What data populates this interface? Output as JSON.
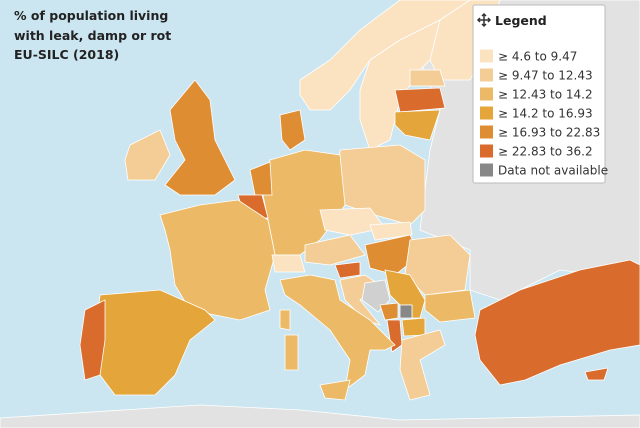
{
  "title": {
    "lines": [
      "% of population living",
      "with leak, damp or rot",
      "EU-SILC (2018)"
    ]
  },
  "legend": {
    "title": "Legend",
    "items": [
      {
        "label": "≥ 4.6 to 9.47",
        "color": "#fbe3c2"
      },
      {
        "label": "≥ 9.47 to 12.43",
        "color": "#f3cd95"
      },
      {
        "label": "≥ 12.43 to 14.2",
        "color": "#ecb966"
      },
      {
        "label": "≥ 14.2 to 16.93",
        "color": "#e4a53a"
      },
      {
        "label": "≥ 16.93 to 22.83",
        "color": "#df8d33"
      },
      {
        "label": "≥ 22.83 to 36.2",
        "color": "#d96b2c"
      },
      {
        "label": "Data not available",
        "color": "#888888"
      }
    ]
  }
}
